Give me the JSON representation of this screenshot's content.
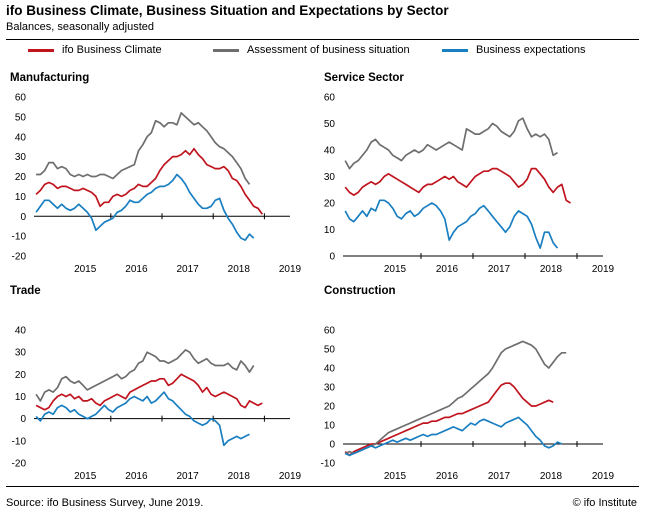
{
  "header": {
    "title": "ifo Business Climate, Business Situation and Expectations by Sector",
    "subtitle": "Balances, seasonally adjusted"
  },
  "legend": [
    {
      "label": "ifo Business Climate",
      "color": "#c0141e"
    },
    {
      "label": "Assessment of business situation",
      "color": "#6e6e6e"
    },
    {
      "label": "Business expectations",
      "color": "#1a7fc1"
    }
  ],
  "footer": {
    "source": "Source: ifo Business Survey, June 2019.",
    "copyright": "© ifo Institute"
  },
  "chart_data": [
    {
      "type": "line",
      "title": "Manufacturing",
      "x_start": "2014-07",
      "x_ticks": [
        "2015",
        "2016",
        "2017",
        "2018",
        "2019"
      ],
      "ylim": [
        -20,
        60
      ],
      "yticks": [
        "-20",
        "-10",
        "0",
        "10",
        "20",
        "30",
        "40",
        "50",
        "60"
      ],
      "series": [
        {
          "name": "ifo Business Climate",
          "color": "#c0141e",
          "values": [
            11,
            13,
            16,
            17,
            16,
            14,
            15,
            15,
            14,
            13,
            13,
            14,
            13,
            12,
            10,
            5,
            7,
            7,
            10,
            11,
            10,
            11,
            13,
            14,
            16,
            15,
            15,
            17,
            19,
            23,
            26,
            28,
            30,
            30,
            31,
            33,
            31,
            34,
            31,
            29,
            26,
            25,
            24,
            24,
            25,
            23,
            19,
            18,
            15,
            11,
            8,
            5,
            4,
            1
          ]
        },
        {
          "name": "Assessment of business situation",
          "color": "#6e6e6e",
          "values": [
            21,
            21,
            23,
            27,
            27,
            24,
            25,
            24,
            21,
            20,
            21,
            20,
            21,
            20,
            20,
            21,
            21,
            20,
            19,
            21,
            23,
            24,
            25,
            26,
            33,
            36,
            40,
            42,
            48,
            47,
            45,
            47,
            47,
            46,
            52,
            50,
            48,
            46,
            47,
            45,
            43,
            40,
            37,
            35,
            34,
            32,
            30,
            27,
            24,
            19,
            16
          ]
        },
        {
          "name": "Business expectations",
          "color": "#1a7fc1",
          "values": [
            2,
            5,
            8,
            8,
            6,
            4,
            6,
            4,
            3,
            4,
            6,
            4,
            2,
            -1,
            -7,
            -5,
            -3,
            -2,
            -1,
            2,
            3,
            5,
            8,
            7,
            7,
            9,
            11,
            12,
            14,
            15,
            15,
            16,
            18,
            21,
            19,
            16,
            12,
            9,
            6,
            4,
            4,
            5,
            8,
            9,
            3,
            -1,
            -4,
            -8,
            -11,
            -12,
            -9,
            -11
          ]
        }
      ]
    },
    {
      "type": "line",
      "title": "Service Sector",
      "x_start": "2014-07",
      "x_ticks": [
        "2015",
        "2016",
        "2017",
        "2018",
        "2019"
      ],
      "ylim": [
        0,
        60
      ],
      "yticks": [
        "0",
        "10",
        "20",
        "30",
        "40",
        "50",
        "60"
      ],
      "series": [
        {
          "name": "ifo Business Climate",
          "color": "#c0141e",
          "values": [
            26,
            24,
            23,
            24,
            26,
            27,
            28,
            27,
            28,
            30,
            31,
            30,
            29,
            28,
            27,
            26,
            25,
            24,
            26,
            27,
            27,
            28,
            29,
            30,
            29,
            30,
            28,
            27,
            26,
            28,
            30,
            31,
            32,
            32,
            33,
            33,
            32,
            31,
            30,
            28,
            26,
            27,
            29,
            33,
            33,
            31,
            29,
            26,
            24,
            26,
            27,
            21,
            20
          ]
        },
        {
          "name": "Assessment of business situation",
          "color": "#6e6e6e",
          "values": [
            36,
            33,
            35,
            36,
            38,
            40,
            43,
            44,
            42,
            41,
            40,
            38,
            37,
            36,
            38,
            39,
            40,
            39,
            40,
            42,
            41,
            40,
            41,
            42,
            43,
            42,
            41,
            40,
            48,
            47,
            46,
            46,
            47,
            48,
            50,
            49,
            47,
            46,
            45,
            47,
            51,
            52,
            48,
            45,
            46,
            45,
            46,
            44,
            38,
            39
          ]
        },
        {
          "name": "Business expectations",
          "color": "#1a7fc1",
          "values": [
            17,
            14,
            13,
            15,
            17,
            15,
            18,
            17,
            21,
            21,
            20,
            18,
            15,
            14,
            16,
            17,
            15,
            16,
            18,
            19,
            20,
            19,
            17,
            14,
            6,
            9,
            11,
            12,
            13,
            15,
            16,
            18,
            19,
            17,
            15,
            13,
            11,
            9,
            11,
            15,
            17,
            16,
            15,
            12,
            7,
            3,
            9,
            9,
            5,
            3
          ]
        }
      ]
    },
    {
      "type": "line",
      "title": "Trade",
      "x_start": "2014-07",
      "x_ticks": [
        "2015",
        "2016",
        "2017",
        "2018",
        "2019"
      ],
      "ylim": [
        -20,
        40
      ],
      "yticks": [
        "-20",
        "-10",
        "0",
        "10",
        "20",
        "30",
        "40"
      ],
      "series": [
        {
          "name": "ifo Business Climate",
          "color": "#c0141e",
          "values": [
            6,
            5,
            4,
            5,
            8,
            10,
            11,
            10,
            11,
            9,
            10,
            8,
            8,
            9,
            7,
            6,
            8,
            9,
            10,
            11,
            10,
            9,
            12,
            13,
            14,
            15,
            16,
            17,
            17,
            18,
            18,
            15,
            16,
            18,
            20,
            19,
            18,
            17,
            15,
            12,
            14,
            11,
            10,
            11,
            12,
            11,
            10,
            9,
            6,
            5,
            8,
            7,
            6,
            7
          ]
        },
        {
          "name": "Assessment of business situation",
          "color": "#6e6e6e",
          "values": [
            11,
            8,
            12,
            13,
            12,
            14,
            18,
            19,
            17,
            16,
            17,
            15,
            13,
            14,
            15,
            16,
            17,
            18,
            19,
            20,
            18,
            19,
            21,
            22,
            25,
            26,
            30,
            29,
            28,
            26,
            26,
            25,
            26,
            27,
            29,
            31,
            30,
            27,
            25,
            26,
            27,
            25,
            24,
            24,
            24,
            25,
            23,
            22,
            26,
            24,
            21,
            24
          ]
        },
        {
          "name": "Business expectations",
          "color": "#1a7fc1",
          "values": [
            1,
            -1,
            2,
            3,
            2,
            5,
            6,
            5,
            3,
            4,
            2,
            1,
            0,
            1,
            2,
            4,
            6,
            4,
            3,
            5,
            6,
            7,
            9,
            10,
            9,
            8,
            10,
            7,
            8,
            10,
            12,
            9,
            8,
            6,
            4,
            2,
            1,
            -1,
            -2,
            -3,
            -2,
            0,
            -1,
            -3,
            -12,
            -10,
            -9,
            -8,
            -9,
            -8,
            -7
          ]
        }
      ]
    },
    {
      "type": "line",
      "title": "Construction",
      "x_start": "2014-07",
      "x_ticks": [
        "2015",
        "2016",
        "2017",
        "2018",
        "2019"
      ],
      "ylim": [
        -10,
        60
      ],
      "yticks": [
        "-10",
        "0",
        "10",
        "20",
        "30",
        "40",
        "50",
        "60"
      ],
      "series": [
        {
          "name": "ifo Business Climate",
          "color": "#c0141e",
          "values": [
            -4,
            -6,
            -4,
            -3,
            -2,
            -1,
            0,
            0,
            1,
            2,
            3,
            4,
            5,
            6,
            7,
            8,
            9,
            10,
            11,
            11,
            12,
            12,
            13,
            14,
            14,
            15,
            16,
            16,
            17,
            18,
            19,
            20,
            21,
            22,
            25,
            28,
            31,
            32,
            32,
            30,
            27,
            24,
            22,
            20,
            20,
            21,
            22,
            23,
            22
          ]
        },
        {
          "name": "Assessment of business situation",
          "color": "#6e6e6e",
          "values": [
            -5,
            -4,
            -5,
            -4,
            -3,
            -2,
            -1,
            0,
            2,
            4,
            6,
            7,
            8,
            9,
            10,
            11,
            12,
            13,
            14,
            15,
            16,
            17,
            18,
            19,
            20,
            22,
            24,
            25,
            27,
            29,
            31,
            33,
            35,
            37,
            40,
            44,
            48,
            50,
            51,
            52,
            53,
            54,
            53,
            52,
            50,
            46,
            42,
            40,
            43,
            46,
            48,
            48
          ]
        },
        {
          "name": "Business expectations",
          "color": "#1a7fc1",
          "values": [
            -5,
            -6,
            -5,
            -4,
            -3,
            -2,
            -1,
            -2,
            -1,
            0,
            1,
            2,
            1,
            2,
            3,
            2,
            3,
            4,
            5,
            4,
            5,
            5,
            6,
            7,
            8,
            9,
            8,
            7,
            9,
            11,
            10,
            12,
            13,
            12,
            11,
            10,
            9,
            11,
            12,
            13,
            14,
            12,
            10,
            7,
            4,
            2,
            -1,
            -2,
            -1,
            1,
            0
          ]
        }
      ]
    }
  ]
}
